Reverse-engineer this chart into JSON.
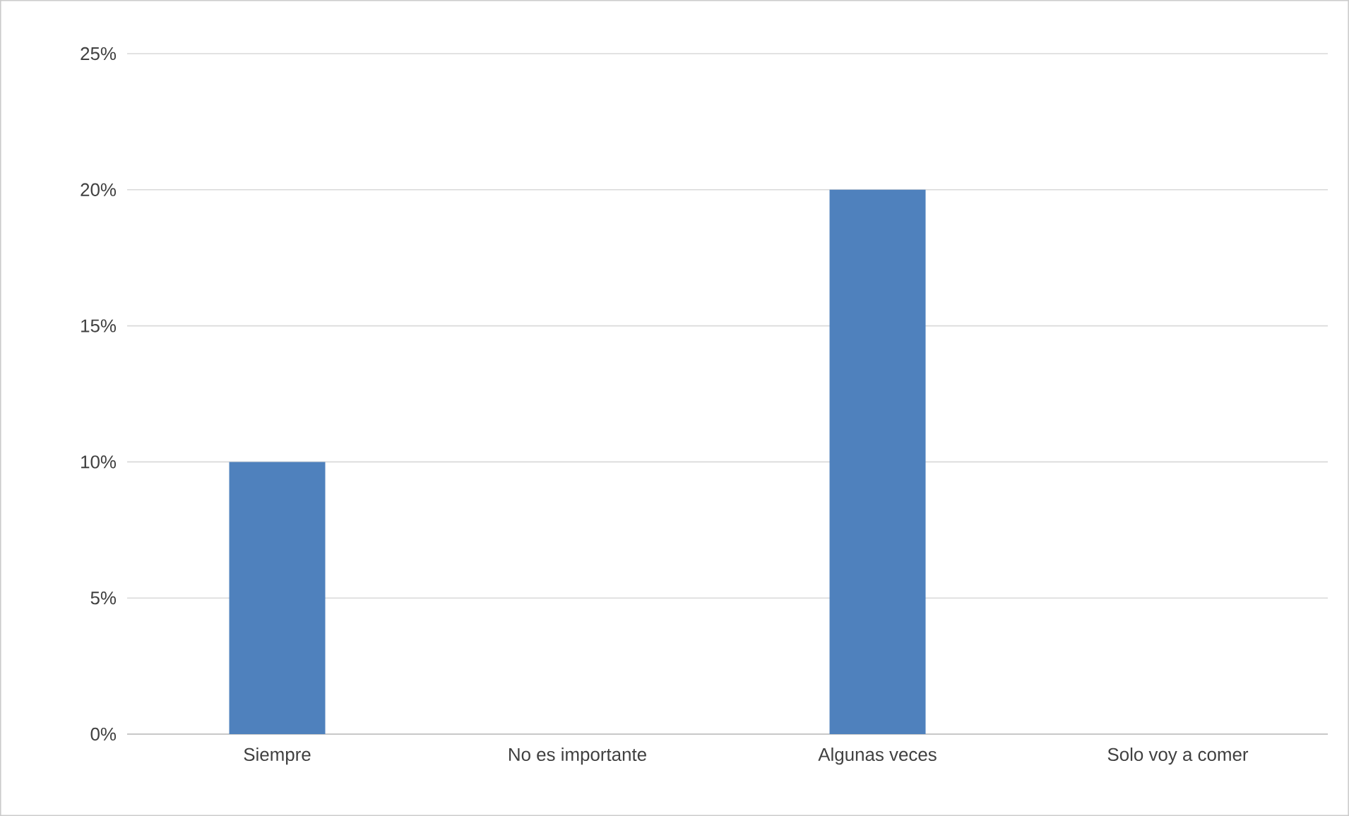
{
  "chart_data": {
    "type": "bar",
    "categories": [
      "Siempre",
      "No es importante",
      "Algunas veces",
      "Solo voy a comer"
    ],
    "values": [
      10,
      0,
      20,
      0
    ],
    "color": "#4f81bd",
    "ylim": [
      0,
      25
    ],
    "yticks": [
      {
        "value": 0,
        "label": "0%"
      },
      {
        "value": 5,
        "label": "5%"
      },
      {
        "value": 10,
        "label": "10%"
      },
      {
        "value": 15,
        "label": "15%"
      },
      {
        "value": 20,
        "label": "20%"
      },
      {
        "value": 25,
        "label": "25%"
      }
    ],
    "grid": "y"
  }
}
